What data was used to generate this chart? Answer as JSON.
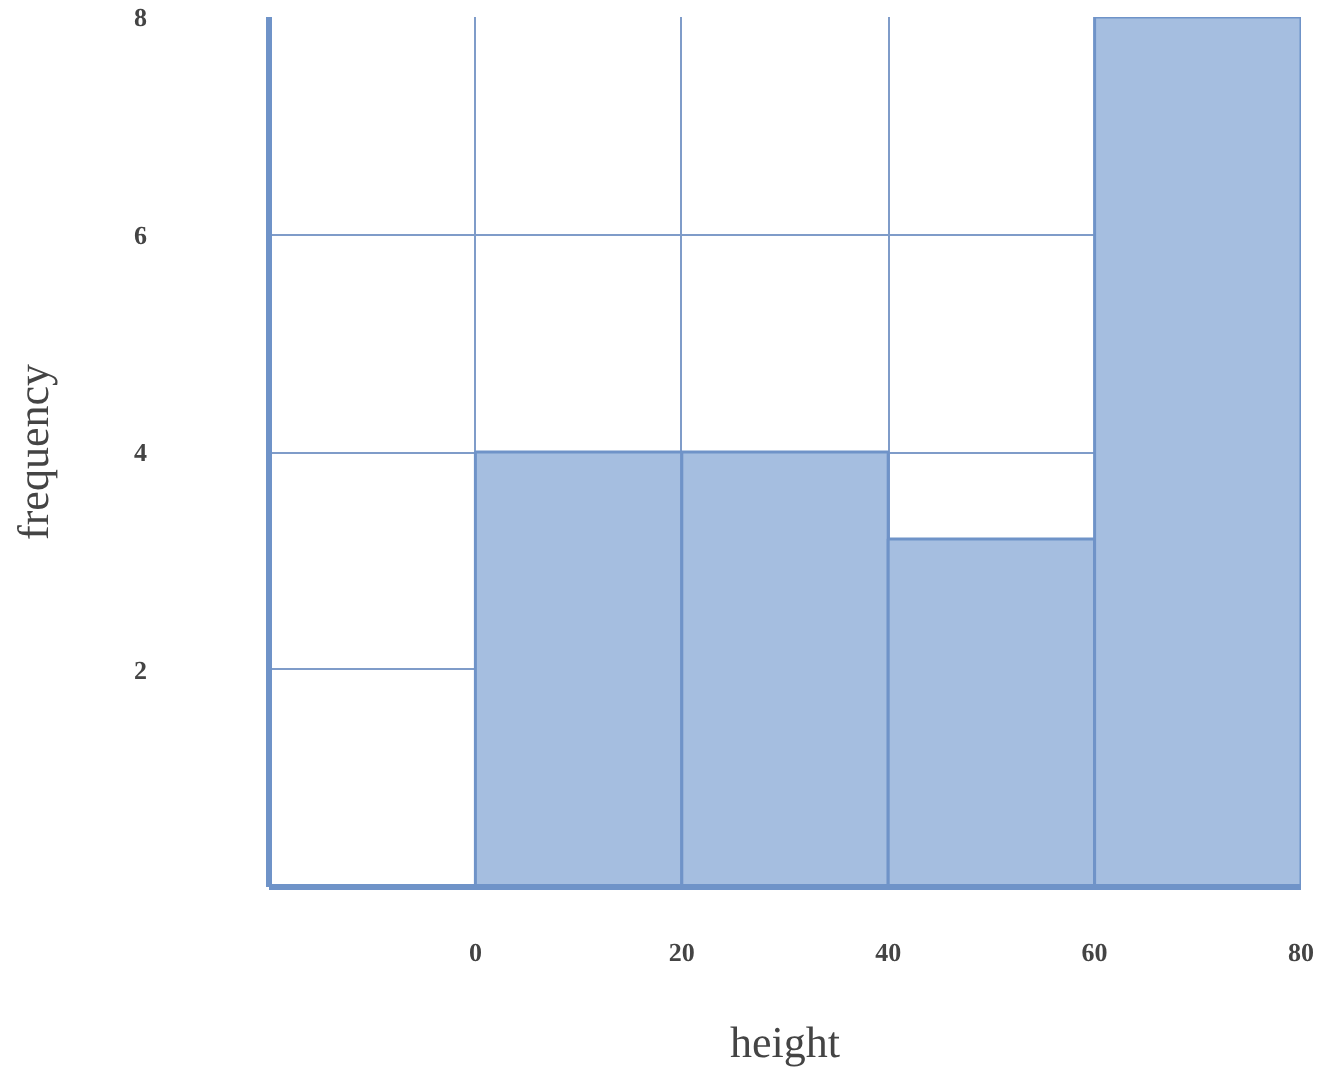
{
  "chart_data": {
    "type": "histogram",
    "xlabel": "height",
    "ylabel": "frequency",
    "bins": [
      -20,
      0,
      20,
      40,
      60,
      80
    ],
    "values": [
      0,
      4,
      4,
      3.2,
      8
    ],
    "color": "#a5bee0",
    "xlim": [
      -20,
      80
    ],
    "ylim": [
      0,
      8
    ],
    "xticks": [
      0,
      20,
      40,
      60,
      80
    ],
    "yticks": [
      2,
      4,
      6,
      8
    ],
    "grid": true
  }
}
